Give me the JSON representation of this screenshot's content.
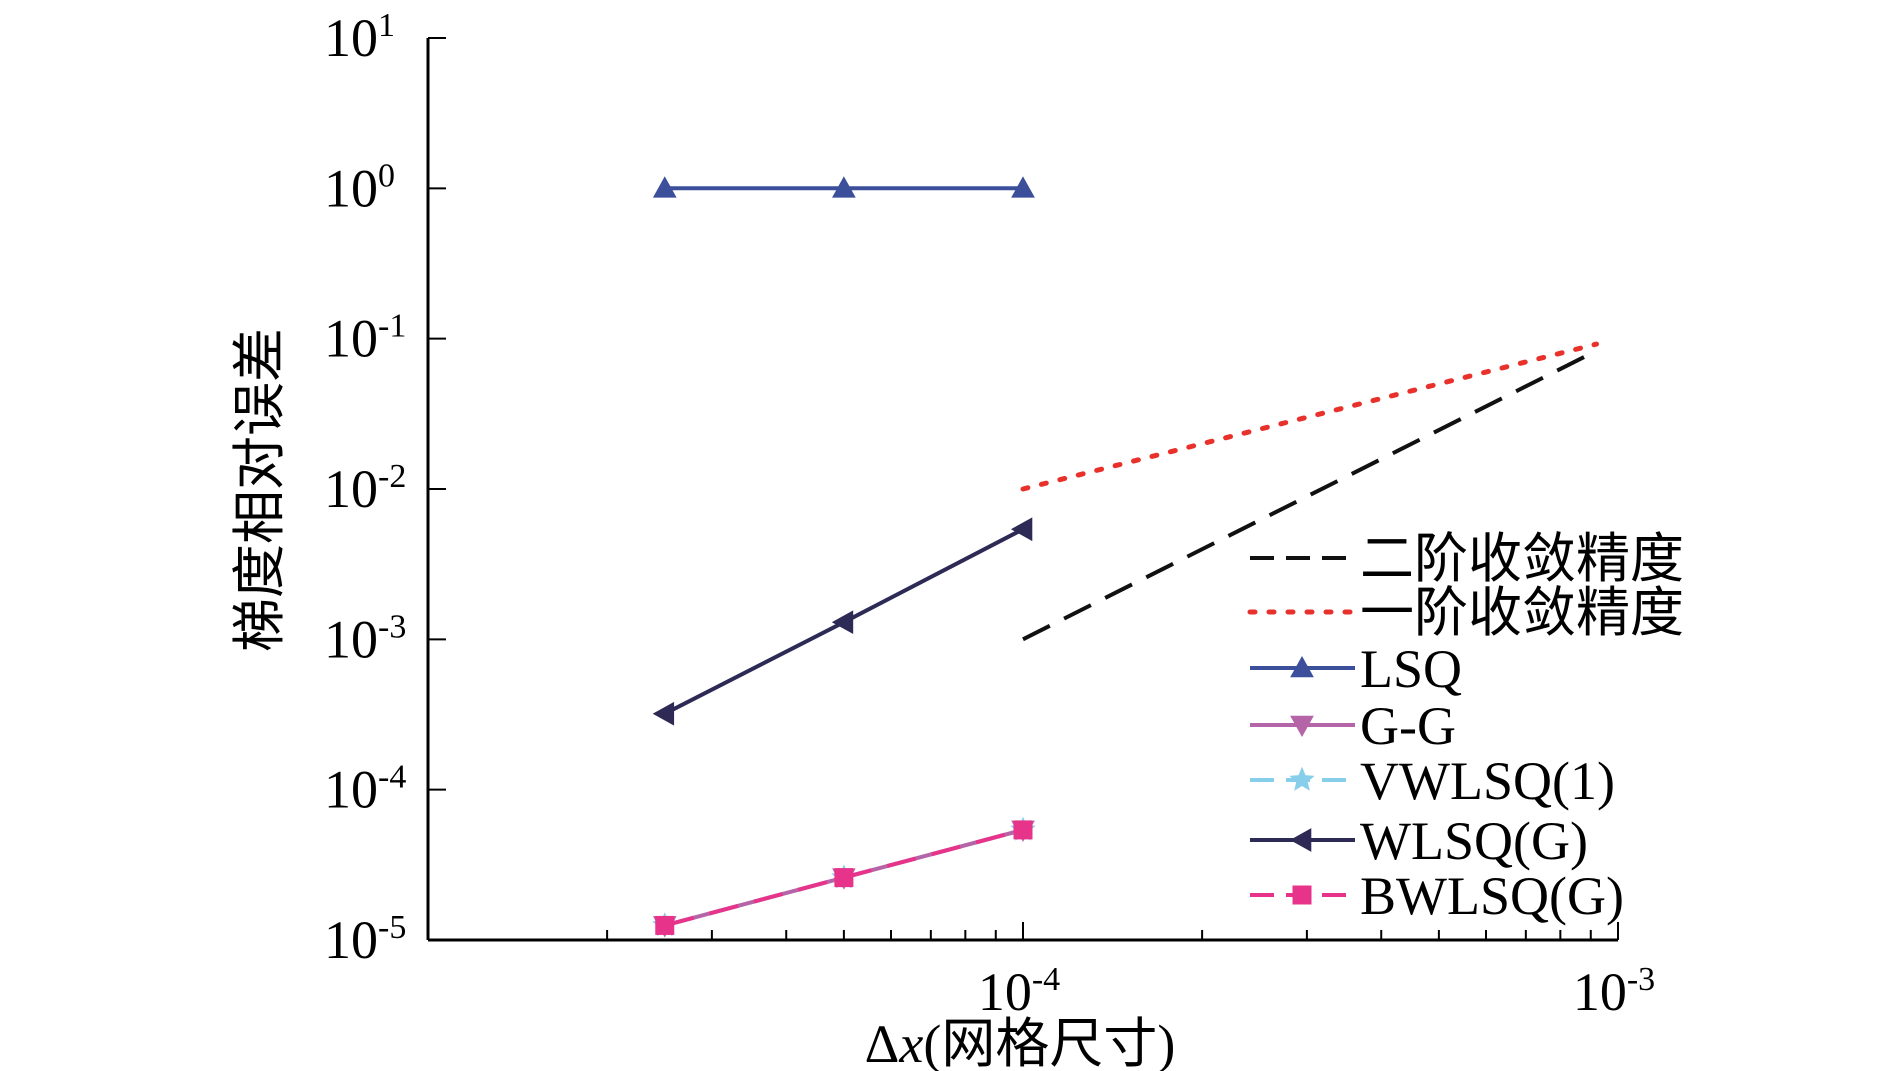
{
  "chart_data": {
    "type": "line",
    "title": "",
    "xlabel_prefix": "Δ",
    "xlabel_var": "x",
    "xlabel_suffix": "(网格尺寸)",
    "ylabel": "梯度相对误差",
    "x_scale": "log",
    "y_scale": "log",
    "xlim": [
      1e-05,
      0.001
    ],
    "ylim": [
      1e-05,
      10
    ],
    "grid": false,
    "legend_position": "lower-right",
    "x_tick_labels": [
      {
        "value": 0.0001,
        "base": "10",
        "exp": "-4"
      },
      {
        "value": 0.001,
        "base": "10",
        "exp": "-3"
      }
    ],
    "y_tick_labels": [
      {
        "value": 10,
        "base": "10",
        "exp": "1"
      },
      {
        "value": 1,
        "base": "10",
        "exp": "0"
      },
      {
        "value": 0.1,
        "base": "10",
        "exp": "-1"
      },
      {
        "value": 0.01,
        "base": "10",
        "exp": "-2"
      },
      {
        "value": 0.001,
        "base": "10",
        "exp": "-3"
      },
      {
        "value": 0.0001,
        "base": "10",
        "exp": "-4"
      },
      {
        "value": 1e-05,
        "base": "10",
        "exp": "-5"
      }
    ],
    "series": [
      {
        "name": "二阶收敛精度",
        "style": "dashed",
        "color": "#111111",
        "marker": "none",
        "x": [
          0.0001,
          0.00092
        ],
        "y": [
          0.001,
          0.083
        ]
      },
      {
        "name": "一阶收敛精度",
        "style": "dotted",
        "color": "#e8312b",
        "marker": "none",
        "x": [
          0.0001,
          0.00092
        ],
        "y": [
          0.01,
          0.092
        ]
      },
      {
        "name": "LSQ",
        "style": "solid",
        "color": "#3b4f9a",
        "marker": "triangle-up",
        "x": [
          2.5e-05,
          5e-05,
          0.0001
        ],
        "y": [
          1.0,
          1.0,
          1.0
        ]
      },
      {
        "name": "G-G",
        "style": "solid",
        "color": "#b565a7",
        "marker": "triangle-down",
        "x": [
          2.5e-05,
          5e-05,
          0.0001
        ],
        "y": [
          1.25e-05,
          2.6e-05,
          5.4e-05
        ]
      },
      {
        "name": "VWLSQ(1)",
        "style": "dashed",
        "color": "#87ceeb",
        "marker": "star",
        "x": [
          2.5e-05,
          5e-05,
          0.0001
        ],
        "y": [
          1.25e-05,
          2.6e-05,
          5.4e-05
        ]
      },
      {
        "name": "WLSQ(G)",
        "style": "solid",
        "color": "#2d2a55",
        "marker": "triangle-left",
        "x": [
          2.5e-05,
          5e-05,
          0.0001
        ],
        "y": [
          0.00032,
          0.0013,
          0.0054
        ]
      },
      {
        "name": "BWLSQ(G)",
        "style": "dashed",
        "color": "#e8338a",
        "marker": "square",
        "x": [
          2.5e-05,
          5e-05,
          0.0001
        ],
        "y": [
          1.25e-05,
          2.6e-05,
          5.4e-05
        ]
      }
    ]
  }
}
